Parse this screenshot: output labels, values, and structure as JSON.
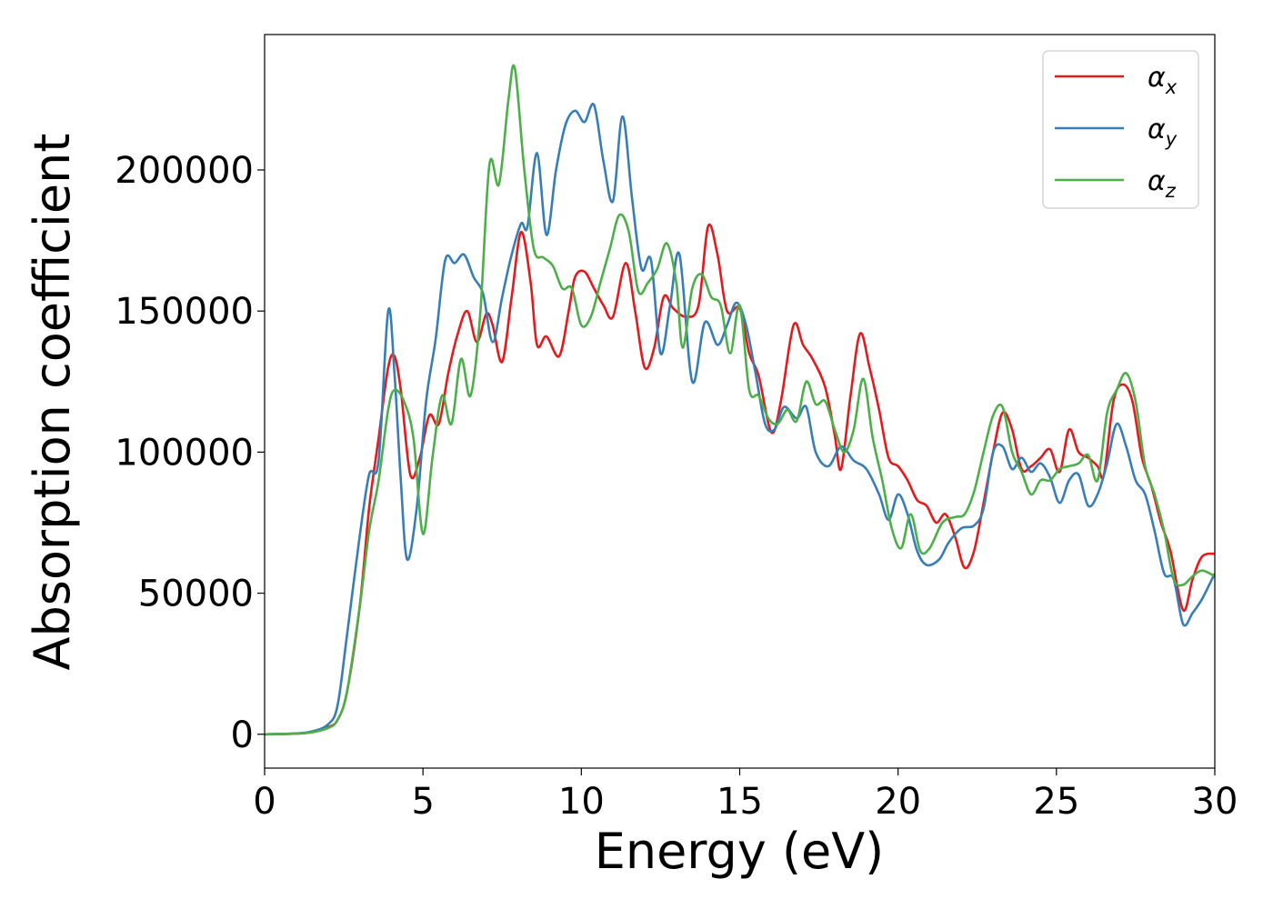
{
  "chart_data": {
    "type": "line",
    "title": "",
    "xlabel": "Energy (eV)",
    "ylabel": "Absorption coefficient",
    "xlim": [
      0,
      30
    ],
    "ylim": [
      -12000,
      248000
    ],
    "xticks": [
      0,
      5,
      10,
      15,
      20,
      25,
      30
    ],
    "yticks": [
      0,
      50000,
      100000,
      150000,
      200000
    ],
    "xtick_labels": [
      "0",
      "5",
      "10",
      "15",
      "20",
      "25",
      "30"
    ],
    "ytick_labels": [
      "0",
      "50000",
      "100000",
      "150000",
      "200000"
    ],
    "grid": false,
    "legend_position": "top-right",
    "series": [
      {
        "name": "αx",
        "legend_symbol": "α",
        "legend_subscript": "x",
        "color": "#e41a1c",
        "points": [
          [
            0,
            0
          ],
          [
            1,
            200
          ],
          [
            1.5,
            800
          ],
          [
            2,
            2500
          ],
          [
            2.3,
            5000
          ],
          [
            2.6,
            15000
          ],
          [
            3,
            45000
          ],
          [
            3.3,
            80000
          ],
          [
            3.6,
            105000
          ],
          [
            3.9,
            130000
          ],
          [
            4.1,
            134000
          ],
          [
            4.3,
            122000
          ],
          [
            4.6,
            92000
          ],
          [
            4.9,
            98000
          ],
          [
            5.2,
            113000
          ],
          [
            5.5,
            110000
          ],
          [
            5.8,
            128000
          ],
          [
            6.1,
            142000
          ],
          [
            6.4,
            150000
          ],
          [
            6.7,
            139000
          ],
          [
            7,
            149000
          ],
          [
            7.2,
            145000
          ],
          [
            7.5,
            132000
          ],
          [
            7.8,
            155000
          ],
          [
            8.1,
            178000
          ],
          [
            8.4,
            160000
          ],
          [
            8.6,
            138000
          ],
          [
            8.9,
            141000
          ],
          [
            9.3,
            134000
          ],
          [
            9.6,
            150000
          ],
          [
            9.8,
            162000
          ],
          [
            10.1,
            164000
          ],
          [
            10.4,
            158000
          ],
          [
            10.7,
            152000
          ],
          [
            11,
            148000
          ],
          [
            11.4,
            167000
          ],
          [
            11.7,
            150000
          ],
          [
            12,
            130000
          ],
          [
            12.3,
            137000
          ],
          [
            12.6,
            155000
          ],
          [
            12.9,
            151000
          ],
          [
            13.3,
            148000
          ],
          [
            13.7,
            152000
          ],
          [
            14,
            180000
          ],
          [
            14.3,
            170000
          ],
          [
            14.6,
            150000
          ],
          [
            15,
            151000
          ],
          [
            15.3,
            135000
          ],
          [
            15.6,
            127000
          ],
          [
            16,
            107000
          ],
          [
            16.3,
            118000
          ],
          [
            16.7,
            145000
          ],
          [
            17,
            138000
          ],
          [
            17.3,
            133000
          ],
          [
            17.7,
            123000
          ],
          [
            18,
            106000
          ],
          [
            18.2,
            94000
          ],
          [
            18.5,
            120000
          ],
          [
            18.8,
            142000
          ],
          [
            19.1,
            130000
          ],
          [
            19.4,
            115000
          ],
          [
            19.7,
            98000
          ],
          [
            20,
            95000
          ],
          [
            20.3,
            90000
          ],
          [
            20.6,
            83000
          ],
          [
            20.9,
            81000
          ],
          [
            21.2,
            75000
          ],
          [
            21.5,
            78000
          ],
          [
            21.8,
            70000
          ],
          [
            22.1,
            59000
          ],
          [
            22.4,
            65000
          ],
          [
            22.7,
            82000
          ],
          [
            23,
            100000
          ],
          [
            23.3,
            114000
          ],
          [
            23.6,
            108000
          ],
          [
            23.9,
            94000
          ],
          [
            24.2,
            95000
          ],
          [
            24.5,
            98000
          ],
          [
            24.8,
            101000
          ],
          [
            25.1,
            93000
          ],
          [
            25.4,
            108000
          ],
          [
            25.7,
            100000
          ],
          [
            26,
            98000
          ],
          [
            26.3,
            95000
          ],
          [
            26.5,
            92000
          ],
          [
            26.8,
            118000
          ],
          [
            27.1,
            124000
          ],
          [
            27.4,
            118000
          ],
          [
            27.7,
            98000
          ],
          [
            28,
            88000
          ],
          [
            28.3,
            75000
          ],
          [
            28.6,
            65000
          ],
          [
            29,
            44000
          ],
          [
            29.3,
            55000
          ],
          [
            29.6,
            63000
          ],
          [
            30,
            64000
          ]
        ]
      },
      {
        "name": "αy",
        "legend_symbol": "α",
        "legend_subscript": "y",
        "color": "#377eb8",
        "points": [
          [
            0,
            0
          ],
          [
            1,
            300
          ],
          [
            1.5,
            1000
          ],
          [
            2,
            3500
          ],
          [
            2.3,
            10000
          ],
          [
            2.6,
            35000
          ],
          [
            3,
            70000
          ],
          [
            3.3,
            92000
          ],
          [
            3.6,
            97000
          ],
          [
            3.9,
            150000
          ],
          [
            4.1,
            128000
          ],
          [
            4.3,
            90000
          ],
          [
            4.5,
            62000
          ],
          [
            4.8,
            80000
          ],
          [
            5.1,
            118000
          ],
          [
            5.4,
            140000
          ],
          [
            5.7,
            168000
          ],
          [
            6,
            167000
          ],
          [
            6.3,
            170000
          ],
          [
            6.6,
            162000
          ],
          [
            6.9,
            156000
          ],
          [
            7.2,
            139000
          ],
          [
            7.5,
            155000
          ],
          [
            7.8,
            170000
          ],
          [
            8.1,
            181000
          ],
          [
            8.3,
            180000
          ],
          [
            8.6,
            206000
          ],
          [
            8.9,
            177000
          ],
          [
            9.2,
            200000
          ],
          [
            9.5,
            216000
          ],
          [
            9.8,
            221000
          ],
          [
            10.1,
            217000
          ],
          [
            10.4,
            223000
          ],
          [
            10.7,
            203000
          ],
          [
            11,
            189000
          ],
          [
            11.3,
            219000
          ],
          [
            11.6,
            190000
          ],
          [
            11.9,
            165000
          ],
          [
            12.2,
            168000
          ],
          [
            12.5,
            135000
          ],
          [
            12.8,
            152000
          ],
          [
            13.1,
            170000
          ],
          [
            13.5,
            125000
          ],
          [
            13.9,
            146000
          ],
          [
            14.3,
            138000
          ],
          [
            14.6,
            145000
          ],
          [
            14.9,
            153000
          ],
          [
            15.2,
            145000
          ],
          [
            15.5,
            128000
          ],
          [
            15.8,
            110000
          ],
          [
            16.1,
            108000
          ],
          [
            16.4,
            116000
          ],
          [
            16.8,
            112000
          ],
          [
            17.1,
            116000
          ],
          [
            17.4,
            100000
          ],
          [
            17.8,
            95000
          ],
          [
            18.2,
            102000
          ],
          [
            18.6,
            97000
          ],
          [
            19,
            94000
          ],
          [
            19.4,
            85000
          ],
          [
            19.7,
            76000
          ],
          [
            20,
            85000
          ],
          [
            20.3,
            78000
          ],
          [
            20.6,
            65000
          ],
          [
            20.9,
            60000
          ],
          [
            21.3,
            62000
          ],
          [
            21.6,
            68000
          ],
          [
            22,
            73000
          ],
          [
            22.4,
            74000
          ],
          [
            22.7,
            80000
          ],
          [
            23,
            100000
          ],
          [
            23.3,
            102000
          ],
          [
            23.6,
            94000
          ],
          [
            23.9,
            98000
          ],
          [
            24.2,
            93000
          ],
          [
            24.5,
            96000
          ],
          [
            24.8,
            91000
          ],
          [
            25.1,
            82000
          ],
          [
            25.4,
            90000
          ],
          [
            25.7,
            92000
          ],
          [
            26,
            81000
          ],
          [
            26.3,
            85000
          ],
          [
            26.6,
            96000
          ],
          [
            26.9,
            110000
          ],
          [
            27.2,
            102000
          ],
          [
            27.5,
            90000
          ],
          [
            27.8,
            85000
          ],
          [
            28.1,
            72000
          ],
          [
            28.4,
            57000
          ],
          [
            28.7,
            55000
          ],
          [
            29,
            39000
          ],
          [
            29.3,
            43000
          ],
          [
            29.6,
            48000
          ],
          [
            30,
            57000
          ]
        ]
      },
      {
        "name": "αz",
        "legend_symbol": "α",
        "legend_subscript": "z",
        "color": "#4daf4a",
        "points": [
          [
            0,
            0
          ],
          [
            1,
            200
          ],
          [
            1.5,
            700
          ],
          [
            2,
            2200
          ],
          [
            2.3,
            5000
          ],
          [
            2.6,
            15000
          ],
          [
            3,
            45000
          ],
          [
            3.3,
            72000
          ],
          [
            3.6,
            90000
          ],
          [
            3.9,
            115000
          ],
          [
            4.1,
            122000
          ],
          [
            4.4,
            118000
          ],
          [
            4.7,
            105000
          ],
          [
            5,
            71000
          ],
          [
            5.3,
            98000
          ],
          [
            5.6,
            120000
          ],
          [
            5.9,
            110000
          ],
          [
            6.2,
            133000
          ],
          [
            6.5,
            120000
          ],
          [
            6.8,
            148000
          ],
          [
            7.1,
            202000
          ],
          [
            7.4,
            195000
          ],
          [
            7.7,
            225000
          ],
          [
            7.9,
            236000
          ],
          [
            8.2,
            200000
          ],
          [
            8.5,
            172000
          ],
          [
            8.8,
            169000
          ],
          [
            9.1,
            166000
          ],
          [
            9.4,
            158000
          ],
          [
            9.7,
            158000
          ],
          [
            10,
            145000
          ],
          [
            10.3,
            148000
          ],
          [
            10.6,
            160000
          ],
          [
            10.9,
            172000
          ],
          [
            11.2,
            184000
          ],
          [
            11.5,
            178000
          ],
          [
            11.8,
            157000
          ],
          [
            12.1,
            160000
          ],
          [
            12.4,
            165000
          ],
          [
            12.7,
            174000
          ],
          [
            13,
            160000
          ],
          [
            13.2,
            137000
          ],
          [
            13.5,
            158000
          ],
          [
            13.8,
            163000
          ],
          [
            14.1,
            155000
          ],
          [
            14.4,
            152000
          ],
          [
            14.7,
            135000
          ],
          [
            15,
            152000
          ],
          [
            15.3,
            122000
          ],
          [
            15.6,
            120000
          ],
          [
            15.9,
            112000
          ],
          [
            16.2,
            110000
          ],
          [
            16.5,
            115000
          ],
          [
            16.8,
            111000
          ],
          [
            17.1,
            125000
          ],
          [
            17.4,
            117000
          ],
          [
            17.7,
            118000
          ],
          [
            18,
            108000
          ],
          [
            18.3,
            100000
          ],
          [
            18.6,
            108000
          ],
          [
            18.9,
            126000
          ],
          [
            19.2,
            105000
          ],
          [
            19.5,
            90000
          ],
          [
            19.8,
            73000
          ],
          [
            20.1,
            66000
          ],
          [
            20.4,
            78000
          ],
          [
            20.7,
            65000
          ],
          [
            21,
            66000
          ],
          [
            21.4,
            75000
          ],
          [
            21.8,
            77000
          ],
          [
            22.1,
            78000
          ],
          [
            22.4,
            86000
          ],
          [
            22.7,
            100000
          ],
          [
            23,
            113000
          ],
          [
            23.3,
            116000
          ],
          [
            23.6,
            100000
          ],
          [
            23.9,
            93000
          ],
          [
            24.2,
            85000
          ],
          [
            24.5,
            90000
          ],
          [
            24.8,
            90000
          ],
          [
            25.1,
            94000
          ],
          [
            25.4,
            95000
          ],
          [
            25.7,
            96000
          ],
          [
            26,
            99000
          ],
          [
            26.3,
            90000
          ],
          [
            26.6,
            114000
          ],
          [
            26.9,
            122000
          ],
          [
            27.2,
            128000
          ],
          [
            27.5,
            118000
          ],
          [
            27.8,
            95000
          ],
          [
            28.1,
            85000
          ],
          [
            28.4,
            72000
          ],
          [
            28.7,
            55000
          ],
          [
            29,
            53000
          ],
          [
            29.3,
            56000
          ],
          [
            29.6,
            58000
          ],
          [
            30,
            56000
          ]
        ]
      }
    ]
  }
}
